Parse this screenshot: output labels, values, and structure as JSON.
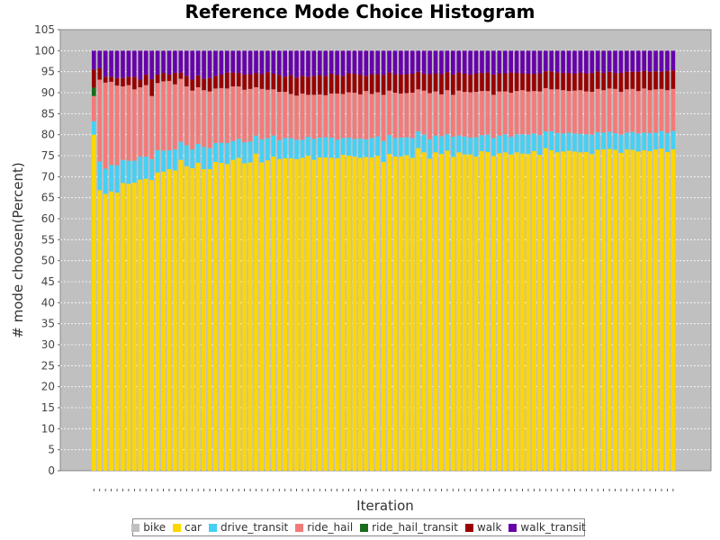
{
  "chart_data": {
    "type": "bar",
    "stacked": true,
    "title": "Reference Mode Choice Histogram",
    "xlabel": "Iteration",
    "ylabel": "# mode choosen(Percent)",
    "ylim": [
      0,
      105
    ],
    "yticks": [
      0,
      5,
      10,
      15,
      20,
      25,
      30,
      35,
      40,
      45,
      50,
      55,
      60,
      65,
      70,
      75,
      80,
      85,
      90,
      95,
      100,
      105
    ],
    "grid": true,
    "legend_position": "bottom",
    "iterations": 101,
    "series": [
      {
        "name": "bike",
        "color": "#c0c0c0"
      },
      {
        "name": "car",
        "color": "#ffd700"
      },
      {
        "name": "drive_transit",
        "color": "#45d0f5"
      },
      {
        "name": "ride_hail",
        "color": "#f47a7a"
      },
      {
        "name": "ride_hail_transit",
        "color": "#1a6b1a"
      },
      {
        "name": "walk",
        "color": "#990000"
      },
      {
        "name": "walk_transit",
        "color": "#6600aa"
      }
    ],
    "car": [
      80.0,
      66.8,
      65.9,
      66.5,
      66.2,
      68.5,
      68.3,
      68.6,
      69.3,
      69.5,
      69.2,
      71.0,
      71.2,
      71.8,
      71.5,
      74.0,
      72.5,
      72.0,
      73.3,
      71.8,
      71.8,
      73.5,
      73.3,
      73.0,
      74.0,
      74.5,
      73.2,
      73.4,
      75.5,
      73.4,
      73.9,
      74.8,
      74.2,
      74.4,
      74.4,
      74.2,
      74.5,
      75.0,
      74.0,
      74.6,
      74.6,
      74.5,
      74.4,
      75.2,
      75.0,
      74.8,
      74.5,
      74.7,
      74.6,
      75.0,
      73.5,
      75.4,
      74.8,
      74.8,
      75.1,
      74.5,
      76.8,
      75.8,
      74.3,
      75.8,
      75.4,
      76.2,
      74.7,
      75.8,
      75.3,
      75.3,
      74.8,
      76.1,
      75.9,
      74.9,
      75.6,
      75.8,
      75.3,
      75.8,
      75.5,
      75.4,
      76.1,
      75.2,
      76.8,
      76.3,
      75.8,
      76.0,
      76.2,
      76.0,
      75.8,
      75.9,
      75.4,
      76.4,
      76.5,
      76.6,
      76.4,
      75.7,
      76.5,
      76.4,
      76.0,
      76.3,
      76.1,
      76.5,
      76.7,
      75.9,
      76.5
    ],
    "drive_transit": [
      3.2,
      6.8,
      6.0,
      6.3,
      6.5,
      5.5,
      5.5,
      5.2,
      5.5,
      5.3,
      5.0,
      5.3,
      5.0,
      4.5,
      5.0,
      4.3,
      5.0,
      4.5,
      4.5,
      5.3,
      5.0,
      4.5,
      4.8,
      5.0,
      4.5,
      4.5,
      5.0,
      5.0,
      4.3,
      5.5,
      5.3,
      5.0,
      4.5,
      4.8,
      4.8,
      4.6,
      4.3,
      4.5,
      5.0,
      4.7,
      4.8,
      4.8,
      4.4,
      4.0,
      4.3,
      4.2,
      4.6,
      4.2,
      4.6,
      4.6,
      5.0,
      4.5,
      4.4,
      4.5,
      4.3,
      4.7,
      4.0,
      4.2,
      4.6,
      4.0,
      4.2,
      3.9,
      4.8,
      4.0,
      4.3,
      4.0,
      4.6,
      3.8,
      4.1,
      4.3,
      4.2,
      4.3,
      4.2,
      4.3,
      4.6,
      4.6,
      4.2,
      4.7,
      4.0,
      4.5,
      4.6,
      4.3,
      4.3,
      4.3,
      4.4,
      4.2,
      4.6,
      4.2,
      4.0,
      4.1,
      4.0,
      4.3,
      4.0,
      4.3,
      4.3,
      4.2,
      4.3,
      4.0,
      4.2,
      4.5,
      4.4
    ],
    "ride_hail": [
      6.0,
      19.5,
      20.5,
      19.8,
      19.0,
      17.5,
      18.0,
      17.0,
      16.5,
      17.0,
      15.0,
      16.0,
      16.5,
      16.5,
      15.5,
      15.0,
      14.0,
      14.0,
      13.5,
      13.5,
      13.5,
      13.0,
      13.0,
      13.0,
      13.0,
      12.5,
      12.5,
      12.5,
      11.5,
      12.0,
      11.5,
      11.0,
      11.5,
      11.0,
      10.5,
      10.5,
      11.0,
      10.0,
      10.5,
      10.3,
      10.0,
      10.5,
      11.0,
      10.5,
      10.8,
      11.0,
      10.5,
      11.5,
      10.5,
      10.5,
      11.0,
      10.6,
      10.8,
      10.5,
      10.5,
      10.8,
      10.0,
      10.5,
      11.0,
      10.5,
      10.0,
      10.5,
      10.0,
      10.7,
      10.6,
      10.8,
      10.8,
      10.5,
      10.4,
      10.3,
      10.5,
      10.2,
      10.5,
      10.3,
      10.5,
      10.3,
      10.1,
      10.4,
      10.3,
      10.0,
      10.4,
      10.3,
      9.9,
      10.2,
      10.4,
      10.2,
      10.2,
      10.3,
      10.1,
      10.3,
      10.5,
      10.2,
      10.3,
      10.2,
      10.1,
      10.5,
      10.2,
      10.3,
      10.0,
      10.2,
      10.0
    ],
    "ride_hail_transit": [
      2.0,
      0,
      0,
      0,
      0,
      0,
      0,
      0,
      0,
      0,
      0,
      0,
      0,
      0,
      0,
      0,
      0,
      0,
      0,
      0,
      0,
      0,
      0,
      0,
      0,
      0,
      0,
      0,
      0,
      0,
      0,
      0,
      0,
      0,
      0,
      0,
      0,
      0,
      0,
      0,
      0,
      0,
      0,
      0,
      0,
      0,
      0,
      0,
      0,
      0,
      0,
      0,
      0,
      0,
      0,
      0,
      0,
      0,
      0,
      0,
      0,
      0,
      0,
      0,
      0,
      0,
      0,
      0,
      0,
      0,
      0,
      0,
      0,
      0,
      0,
      0,
      0,
      0,
      0,
      0,
      0,
      0,
      0,
      0,
      0,
      0,
      0,
      0,
      0,
      0,
      0,
      0,
      0,
      0,
      0,
      0,
      0,
      0,
      0,
      0,
      0
    ],
    "walk": [
      4.3,
      2.7,
      1.4,
      1.2,
      1.8,
      2.0,
      2.0,
      3.0,
      1.8,
      2.5,
      4.0,
      2.0,
      2.0,
      1.5,
      2.7,
      1.5,
      2.5,
      2.6,
      2.8,
      2.7,
      3.2,
      3.0,
      3.2,
      3.8,
      3.3,
      3.2,
      3.6,
      3.5,
      3.4,
      3.5,
      4.2,
      3.7,
      4.0,
      3.6,
      4.5,
      4.3,
      4.2,
      4.3,
      4.5,
      4.6,
      4.6,
      4.7,
      4.4,
      4.3,
      4.5,
      4.5,
      4.7,
      3.6,
      4.7,
      4.3,
      4.7,
      4.3,
      4.4,
      4.5,
      4.5,
      4.5,
      4.2,
      4.0,
      4.5,
      4.3,
      4.8,
      4.3,
      4.8,
      4.3,
      4.3,
      4.2,
      4.4,
      4.3,
      4.4,
      4.8,
      4.3,
      4.3,
      4.8,
      4.3,
      4.0,
      4.2,
      4.1,
      4.3,
      4.0,
      4.3,
      4.0,
      4.1,
      4.3,
      4.0,
      4.2,
      4.3,
      4.5,
      4.2,
      4.1,
      4.0,
      3.8,
      4.5,
      4.2,
      4.1,
      4.6,
      4.2,
      4.4,
      4.3,
      4.1,
      4.6,
      4.4
    ],
    "walk_transit": [
      4.5,
      4.2,
      6.2,
      6.2,
      6.5,
      6.5,
      6.2,
      6.2,
      6.9,
      5.7,
      6.8,
      5.7,
      5.3,
      5.7,
      5.3,
      5.2,
      6.0,
      6.9,
      5.9,
      6.7,
      6.5,
      6.0,
      5.7,
      5.2,
      5.2,
      5.3,
      5.7,
      5.6,
      5.3,
      5.6,
      5.1,
      5.5,
      5.8,
      6.2,
      5.8,
      6.4,
      6.0,
      6.2,
      6.0,
      5.8,
      6.0,
      5.5,
      5.8,
      6.0,
      5.4,
      5.5,
      5.7,
      6.0,
      5.6,
      5.6,
      5.8,
      5.2,
      5.6,
      5.7,
      5.6,
      5.5,
      5.0,
      5.5,
      5.6,
      5.4,
      5.6,
      5.1,
      5.7,
      5.2,
      5.5,
      5.7,
      5.4,
      5.3,
      5.2,
      5.7,
      5.4,
      5.4,
      5.2,
      5.3,
      5.4,
      5.5,
      5.5,
      5.4,
      4.9,
      4.9,
      5.2,
      5.3,
      5.3,
      5.5,
      5.2,
      5.4,
      5.3,
      4.9,
      5.3,
      5.0,
      5.3,
      5.3,
      5.0,
      5.0,
      5.0,
      4.8,
      5.0,
      4.9,
      5.0,
      4.8,
      4.7
    ]
  }
}
